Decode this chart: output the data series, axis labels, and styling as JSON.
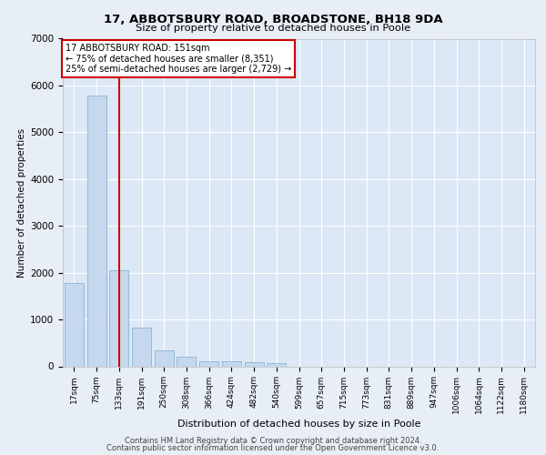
{
  "title_line1": "17, ABBOTSBURY ROAD, BROADSTONE, BH18 9DA",
  "title_line2": "Size of property relative to detached houses in Poole",
  "xlabel": "Distribution of detached houses by size in Poole",
  "ylabel": "Number of detached properties",
  "categories": [
    "17sqm",
    "75sqm",
    "133sqm",
    "191sqm",
    "250sqm",
    "308sqm",
    "366sqm",
    "424sqm",
    "482sqm",
    "540sqm",
    "599sqm",
    "657sqm",
    "715sqm",
    "773sqm",
    "831sqm",
    "889sqm",
    "947sqm",
    "1006sqm",
    "1064sqm",
    "1122sqm",
    "1180sqm"
  ],
  "bar_heights": [
    1780,
    5780,
    2060,
    820,
    340,
    200,
    115,
    105,
    95,
    70,
    0,
    0,
    0,
    0,
    0,
    0,
    0,
    0,
    0,
    0,
    0
  ],
  "bar_color": "#c5d8ee",
  "bar_edge_color": "#7aaad0",
  "vline_x_index": 2,
  "vline_color": "#cc0000",
  "annotation_box_text": "17 ABBOTSBURY ROAD: 151sqm\n← 75% of detached houses are smaller (8,351)\n25% of semi-detached houses are larger (2,729) →",
  "ylim": [
    0,
    7000
  ],
  "yticks": [
    0,
    1000,
    2000,
    3000,
    4000,
    5000,
    6000,
    7000
  ],
  "footer_line1": "Contains HM Land Registry data © Crown copyright and database right 2024.",
  "footer_line2": "Contains public sector information licensed under the Open Government Licence v3.0.",
  "background_color": "#e8eef5",
  "plot_bg_color": "#dce8f5",
  "grid_color": "#ffffff"
}
